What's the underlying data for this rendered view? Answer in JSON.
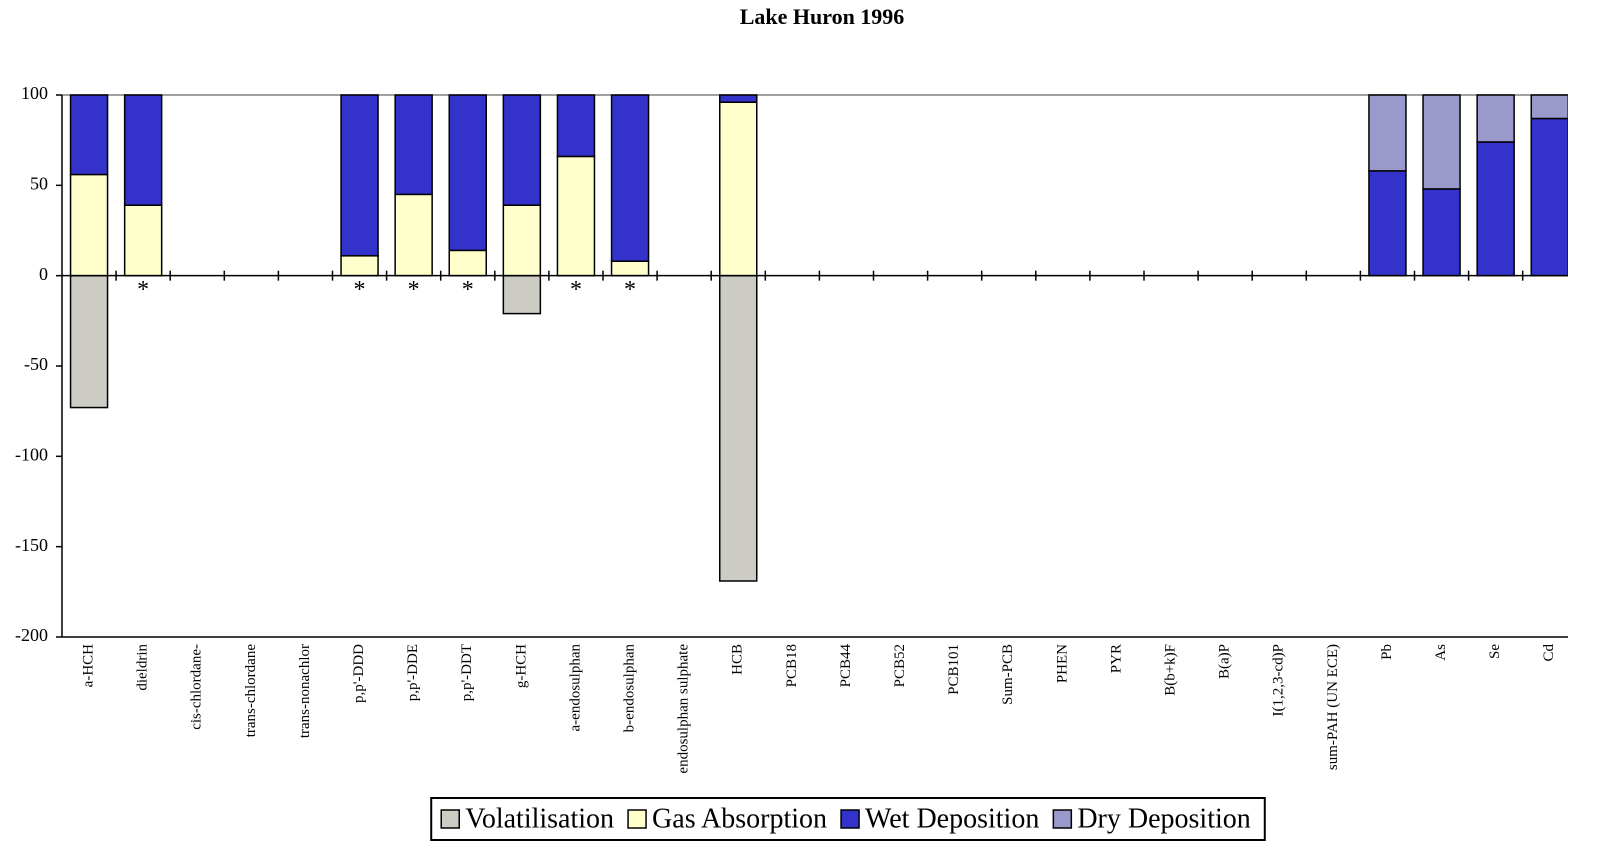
{
  "chart_data": {
    "type": "bar",
    "stacked": true,
    "title": "Lake Huron 1996",
    "categories": [
      "a-HCH",
      "dieldrin",
      "cis-chlordane-",
      "trans-chlordane",
      "trans-nonachlor",
      "p,p'-DDD",
      "p,p'-DDE",
      "p,p'-DDT",
      "g-HCH",
      "a-endosulphan",
      "b-endosulphan",
      "endosulphan sulphate",
      "HCB",
      "PCB18",
      "PCB44",
      "PCB52",
      "PCB101",
      "Sum-PCB",
      "PHEN",
      "PYR",
      "B(b+k)F",
      "B(a)P",
      "I(1,2,3-cd)P",
      "sum-PAH (UN ECE)",
      "Pb",
      "As",
      "Se",
      "Cd"
    ],
    "series": [
      {
        "name": "Volatilisation",
        "color": "#ccccc4",
        "values": [
          -73,
          null,
          null,
          null,
          null,
          null,
          null,
          null,
          -21,
          null,
          null,
          null,
          -169,
          null,
          null,
          null,
          null,
          null,
          null,
          null,
          null,
          null,
          null,
          null,
          null,
          null,
          null,
          null
        ]
      },
      {
        "name": "Gas Absorption",
        "color": "#ffffcc",
        "values": [
          56,
          39,
          null,
          null,
          null,
          11,
          45,
          14,
          39,
          66,
          8,
          null,
          96,
          null,
          null,
          null,
          null,
          null,
          null,
          null,
          null,
          null,
          null,
          null,
          null,
          null,
          null,
          null
        ]
      },
      {
        "name": "Wet Deposition",
        "color": "#3333cc",
        "values": [
          44,
          61,
          null,
          null,
          null,
          89,
          55,
          86,
          61,
          34,
          92,
          null,
          4,
          null,
          null,
          null,
          null,
          null,
          null,
          null,
          null,
          null,
          null,
          null,
          58,
          48,
          74,
          87
        ]
      },
      {
        "name": "Dry Deposition",
        "color": "#9999cc",
        "values": [
          null,
          null,
          null,
          null,
          null,
          null,
          null,
          null,
          null,
          null,
          null,
          null,
          null,
          null,
          null,
          null,
          null,
          null,
          null,
          null,
          null,
          null,
          null,
          null,
          42,
          52,
          26,
          13
        ]
      }
    ],
    "annotations": [
      null,
      "*",
      null,
      null,
      null,
      "*",
      "*",
      "*",
      null,
      "*",
      "*",
      null,
      null,
      null,
      null,
      null,
      null,
      null,
      null,
      null,
      null,
      null,
      null,
      null,
      null,
      null,
      null,
      null
    ],
    "ylim": [
      -200,
      100
    ],
    "yticks": [
      -200,
      -150,
      -100,
      -50,
      0,
      50,
      100
    ],
    "grid": false,
    "legend": "bottom"
  }
}
